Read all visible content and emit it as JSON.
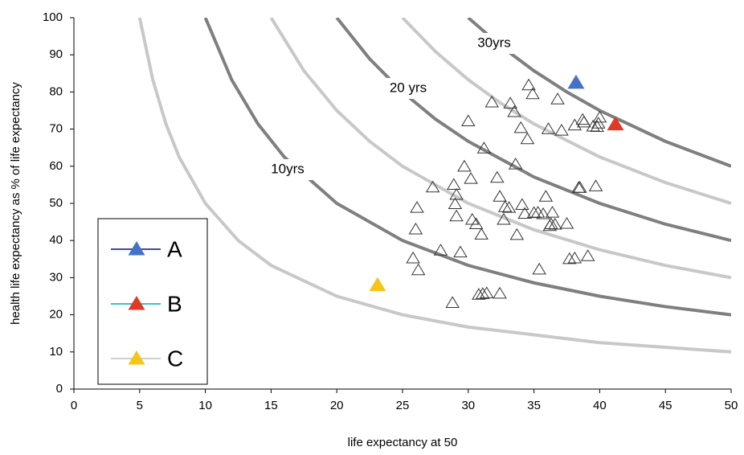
{
  "chart_data": {
    "type": "scatter",
    "x_label": "life expectancy at 50",
    "y_label": "health life expectancy as % of life expectancy",
    "xlim": [
      0,
      50
    ],
    "xticks": [
      0,
      5,
      10,
      15,
      20,
      25,
      30,
      35,
      40,
      45,
      50
    ],
    "ylim": [
      0,
      100
    ],
    "yticks": [
      0,
      10,
      20,
      30,
      40,
      50,
      60,
      70,
      80,
      90,
      100
    ],
    "curves": [
      {
        "color": "#c8c8c8",
        "x": [
          5,
          6,
          7,
          8,
          10,
          12.5,
          15,
          20,
          25,
          30,
          40,
          50
        ],
        "values": [
          100,
          83.3,
          71.4,
          62.5,
          50,
          40,
          33.3,
          25,
          20,
          16.7,
          12.5,
          10
        ]
      },
      {
        "label": "10yrs",
        "color": "#7f7f7f",
        "x": [
          10,
          12,
          14,
          16,
          20,
          25,
          30,
          35,
          40,
          45,
          50
        ],
        "values": [
          100,
          83.3,
          71.4,
          62.5,
          50,
          40,
          33.3,
          28.6,
          25,
          22.2,
          20
        ]
      },
      {
        "color": "#c8c8c8",
        "x": [
          15,
          17.5,
          20,
          22.5,
          25,
          30,
          35,
          40,
          45,
          50
        ],
        "values": [
          100,
          85.7,
          75,
          66.7,
          60,
          50,
          42.9,
          37.5,
          33.3,
          30
        ]
      },
      {
        "label": "20 yrs",
        "color": "#7f7f7f",
        "x": [
          20,
          22.5,
          25,
          27.5,
          30,
          35,
          40,
          45,
          50
        ],
        "values": [
          100,
          88.9,
          80,
          72.7,
          66.7,
          57.1,
          50,
          44.4,
          40
        ]
      },
      {
        "color": "#c8c8c8",
        "x": [
          25,
          27.5,
          30,
          32.5,
          35,
          40,
          45,
          50
        ],
        "values": [
          100,
          90.9,
          83.3,
          76.9,
          71.4,
          62.5,
          55.6,
          50
        ]
      },
      {
        "label": "30yrs",
        "color": "#7f7f7f",
        "x": [
          30,
          32.5,
          35,
          37.5,
          40,
          45,
          50
        ],
        "values": [
          100,
          92.3,
          85.7,
          80,
          75,
          66.7,
          60
        ]
      }
    ],
    "points": {
      "color": "#333333",
      "x": [
        26.1,
        26.0,
        25.8,
        26.2,
        27.3,
        27.9,
        28.8,
        28.9,
        29.0,
        29.1,
        29.1,
        29.4,
        29.7,
        30.0,
        30.2,
        30.3,
        30.6,
        30.8,
        31.0,
        31.1,
        31.2,
        31.4,
        31.8,
        32.2,
        32.4,
        32.4,
        32.7,
        32.8,
        33.1,
        33.2,
        33.5,
        33.6,
        33.7,
        34.0,
        34.1,
        34.3,
        34.5,
        34.6,
        34.9,
        35.0,
        35.3,
        35.4,
        35.7,
        35.9,
        36.1,
        36.2,
        36.3,
        36.4,
        36.6,
        36.8,
        37.1,
        37.5,
        37.7,
        38.1,
        38.1,
        38.4,
        38.5,
        38.7,
        38.8,
        39.1,
        39.5,
        39.7,
        39.8,
        39.9,
        40.0
      ],
      "values": [
        48.8,
        43,
        35.2,
        32,
        54.3,
        37.3,
        23.2,
        55,
        49.8,
        52.3,
        46.5,
        36.8,
        59.9,
        72.1,
        56.6,
        45.6,
        44.4,
        25.4,
        41.6,
        25.6,
        64.8,
        25.8,
        77.2,
        56.9,
        51.8,
        25.7,
        45.6,
        49,
        48.8,
        76.9,
        74.6,
        60.5,
        41.5,
        70.3,
        49.6,
        47.2,
        67.3,
        81.8,
        79.4,
        47.4,
        47.5,
        32.2,
        47.1,
        51.8,
        70,
        43.9,
        44.4,
        47.5,
        44.3,
        78,
        69.6,
        44.5,
        35,
        35.2,
        71,
        54.2,
        54.2,
        72.5,
        71.8,
        35.8,
        70.7,
        54.6,
        70.6,
        71.5,
        73.1
      ]
    },
    "series": [
      {
        "name": "A",
        "color": "#4472c4",
        "line_color": "#3a4f9a",
        "x": [
          38.2
        ],
        "values": [
          82.5
        ]
      },
      {
        "name": "B",
        "color": "#e03a26",
        "line_color": "#3fbfc4",
        "x": [
          41.2
        ],
        "values": [
          71.3
        ]
      },
      {
        "name": "C",
        "color": "#f5c518",
        "line_color": "#cfcfcf",
        "x": [
          23.1
        ],
        "values": [
          28
        ]
      }
    ]
  }
}
